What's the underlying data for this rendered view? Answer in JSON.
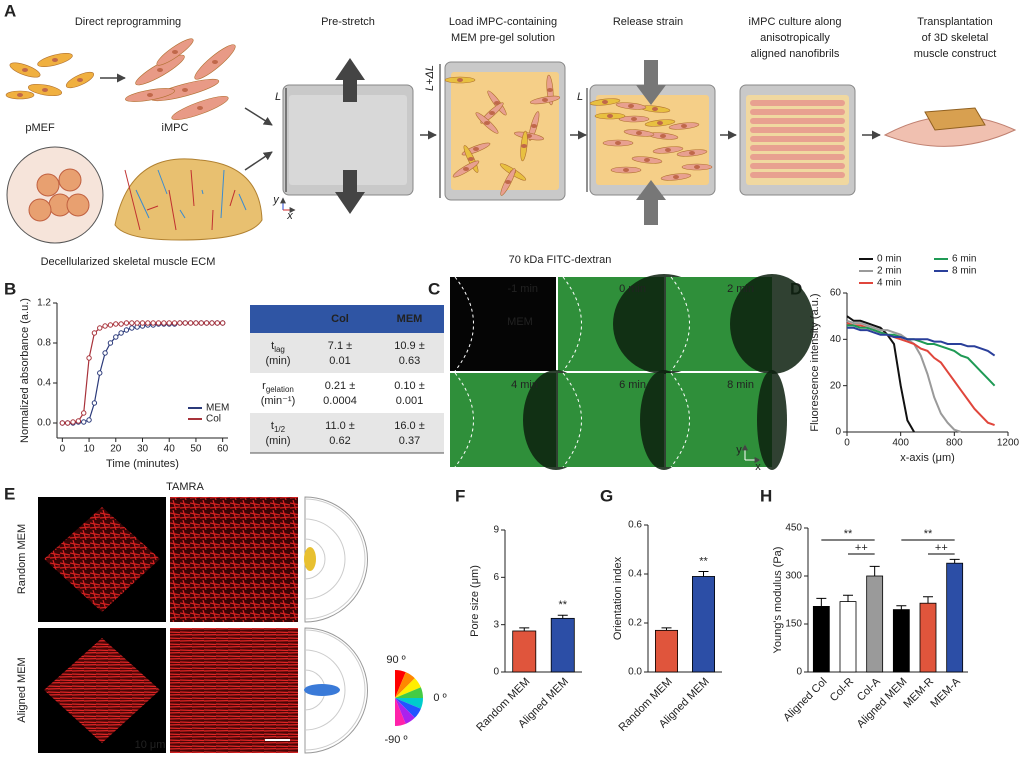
{
  "panel_labels": [
    "A",
    "B",
    "C",
    "D",
    "E",
    "F",
    "G",
    "H"
  ],
  "panel_a": {
    "direct_reprogramming": "Direct reprogramming",
    "pmef": "pMEF",
    "impc": "iMPC",
    "ecm": "Decellularized skeletal muscle ECM",
    "steps": [
      [
        "Pre-stretch"
      ],
      [
        "Load iMPC-containing",
        "MEM pre-gel solution"
      ],
      [
        "Release strain"
      ],
      [
        "iMPC culture along",
        "anisotropically",
        "aligned nanofibrils"
      ],
      [
        "Transplantation",
        "of 3D skeletal",
        "muscle construct"
      ]
    ],
    "length_labels": [
      "L",
      "L+ΔL",
      "L"
    ],
    "axis_y": "y",
    "axis_x": "x"
  },
  "panel_b_table": {
    "header": [
      "Col",
      "MEM"
    ],
    "rows": [
      {
        "symbol": "t",
        "sub": "lag",
        "unit": "(min)",
        "cells": [
          [
            "7.1 ±",
            "0.01"
          ],
          [
            "10.9 ±",
            "0.63"
          ]
        ]
      },
      {
        "symbol": "r",
        "sub": "gelation",
        "unit": "(min⁻¹)",
        "cells": [
          [
            "0.21 ±",
            "0.0004"
          ],
          [
            "0.10 ±",
            "0.001"
          ]
        ]
      },
      {
        "symbol": "t",
        "sub": "1/2",
        "unit": "(min)",
        "cells": [
          [
            "11.0 ±",
            "0.62"
          ],
          [
            "16.0 ±",
            "0.37"
          ]
        ]
      }
    ]
  },
  "panel_c": {
    "title": "70 kDa FITC-dextran",
    "times": [
      "-1 min",
      "0 min",
      "2 min",
      "4 min",
      "6 min",
      "8 min"
    ],
    "region": "MEM",
    "axis_y": "y",
    "axis_x": "x"
  },
  "panel_e": {
    "title": "TAMRA",
    "rows": [
      "Random MEM",
      "Aligned MEM"
    ],
    "scale_bar": "10 μm",
    "wheel": [
      "90 º",
      "0 º",
      "-90 º"
    ]
  },
  "chart_data": [
    {
      "type": "line",
      "xlabel": "Time (minutes)",
      "ylabel": "Normalized absorbance (a.u.)",
      "x": [
        0,
        2,
        4,
        6,
        8,
        10,
        12,
        14,
        16,
        18,
        20,
        22,
        24,
        26,
        28,
        30,
        32,
        34,
        36,
        38,
        40,
        42,
        44,
        46,
        48,
        50,
        52,
        54,
        56,
        58,
        60
      ],
      "series": [
        {
          "name": "MEM",
          "color": "#2b3a7a",
          "values": [
            0,
            0,
            0,
            0.01,
            0.01,
            0.03,
            0.2,
            0.5,
            0.7,
            0.8,
            0.86,
            0.9,
            0.93,
            0.95,
            0.96,
            0.97,
            0.98,
            0.98,
            0.99,
            0.99,
            0.99,
            0.99,
            1,
            1,
            1,
            1,
            1,
            1,
            1,
            1,
            1
          ]
        },
        {
          "name": "Col",
          "color": "#a8323a",
          "values": [
            0,
            0,
            0.01,
            0.02,
            0.1,
            0.65,
            0.9,
            0.95,
            0.97,
            0.98,
            0.99,
            0.99,
            1,
            1,
            1,
            1,
            1,
            1,
            1,
            1,
            1,
            1,
            1,
            1,
            1,
            1,
            1,
            1,
            1,
            1,
            1
          ]
        }
      ],
      "xlim": [
        -2,
        62
      ],
      "xticks": [
        0,
        10,
        20,
        30,
        40,
        50,
        60
      ],
      "ylim": [
        -0.15,
        1.2
      ],
      "yticks": [
        {
          "value": 0,
          "label": "0.0"
        },
        {
          "value": 0.4,
          "label": "0.4"
        },
        {
          "value": 0.8,
          "label": "0.8"
        },
        {
          "value": 1.2,
          "label": "1.2"
        }
      ],
      "markers": true,
      "legend": "lower right"
    },
    {
      "type": "line",
      "xlabel": "x-axis (μm)",
      "ylabel": "Fluorescence intensity (a.u.)",
      "x": [
        0,
        50,
        100,
        150,
        200,
        250,
        300,
        350,
        400,
        450,
        500,
        550,
        600,
        650,
        700,
        750,
        800,
        850,
        900,
        950,
        1000,
        1050,
        1100
      ],
      "series": [
        {
          "name": "0 min",
          "color": "#111111",
          "values": [
            50,
            48,
            48,
            47,
            46,
            45,
            42,
            38,
            20,
            5,
            0,
            null,
            null,
            null,
            null,
            null,
            null,
            null,
            null,
            null,
            null,
            null,
            null
          ]
        },
        {
          "name": "2 min",
          "color": "#9a9a9a",
          "values": [
            48,
            47,
            47,
            46,
            45,
            44,
            44,
            43,
            42,
            40,
            38,
            33,
            25,
            15,
            8,
            4,
            1,
            0,
            null,
            null,
            null,
            null,
            null
          ]
        },
        {
          "name": "4 min",
          "color": "#e0463c",
          "values": [
            47,
            46,
            46,
            45,
            44,
            43,
            42,
            41,
            40,
            39,
            38,
            36,
            35,
            32,
            30,
            26,
            22,
            18,
            14,
            10,
            7,
            4,
            3
          ]
        },
        {
          "name": "6 min",
          "color": "#1f9a55",
          "values": [
            46,
            46,
            45,
            45,
            44,
            43,
            42,
            42,
            41,
            40,
            40,
            39,
            38,
            38,
            37,
            36,
            35,
            33,
            32,
            29,
            26,
            23,
            20
          ]
        },
        {
          "name": "8 min",
          "color": "#2a3f9a",
          "values": [
            45,
            45,
            44,
            44,
            43,
            42,
            42,
            41,
            41,
            40,
            40,
            40,
            40,
            39,
            39,
            38,
            38,
            38,
            37,
            37,
            36,
            35,
            33
          ]
        }
      ],
      "xlim": [
        0,
        1200
      ],
      "xticks": [
        0,
        400,
        800,
        1200
      ],
      "ylim": [
        0,
        60
      ],
      "yticks": [
        0,
        20,
        40,
        60
      ],
      "markers": false,
      "legend": "top"
    },
    {
      "type": "bar",
      "ylabel": "Pore size (μm)",
      "categories": [
        "Random MEM",
        "Aligned MEM"
      ],
      "values": [
        2.6,
        3.4
      ],
      "errors": [
        0.2,
        0.2
      ],
      "colors": [
        "#e0553c",
        "#2c4ea6"
      ],
      "ylim": [
        0,
        9
      ],
      "yticks": [
        0,
        3,
        6,
        9
      ],
      "annotations": [
        "**"
      ]
    },
    {
      "type": "bar",
      "ylabel": "Orientation index",
      "categories": [
        "Random MEM",
        "Aligned MEM"
      ],
      "values": [
        0.17,
        0.39
      ],
      "errors": [
        0.01,
        0.02
      ],
      "colors": [
        "#e0553c",
        "#2c4ea6"
      ],
      "ylim": [
        0,
        0.6
      ],
      "yticks": [
        {
          "value": 0,
          "label": "0.0"
        },
        {
          "value": 0.2,
          "label": "0.2"
        },
        {
          "value": 0.4,
          "label": "0.4"
        },
        {
          "value": 0.6,
          "label": "0.6"
        }
      ],
      "annotations": [
        "**"
      ]
    },
    {
      "type": "bar",
      "ylabel": "Young's modulus (Pa)",
      "categories": [
        "Aligned Col",
        "Col-R",
        "Col-A",
        "Aligned MEM",
        "MEM-R",
        "MEM-A"
      ],
      "values": [
        205,
        220,
        300,
        195,
        215,
        340
      ],
      "errors": [
        25,
        20,
        30,
        12,
        20,
        12
      ],
      "colors": [
        "#000000",
        "#ffffff",
        "#9a9a9a",
        "#000000",
        "#e0553c",
        "#2c4ea6"
      ],
      "ylim": [
        0,
        450
      ],
      "yticks": [
        0,
        150,
        300,
        450
      ],
      "annotations": [
        "**",
        "++",
        "**",
        "++"
      ]
    }
  ]
}
